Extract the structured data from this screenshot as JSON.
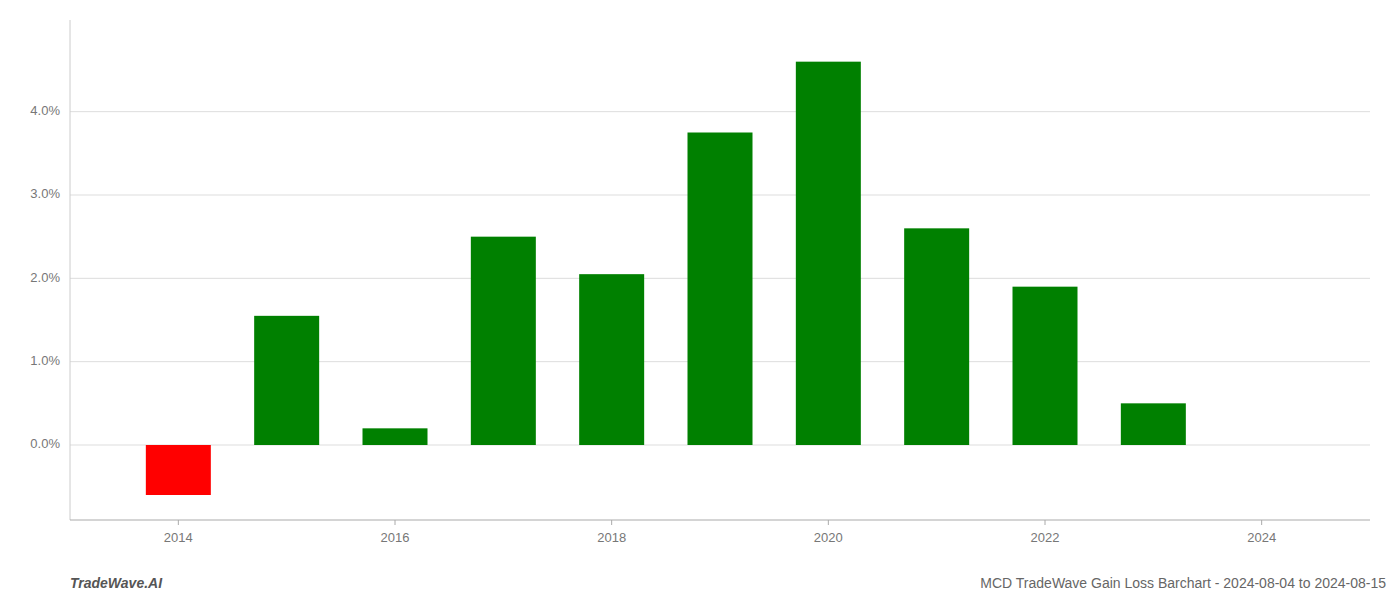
{
  "chart_data": {
    "type": "bar",
    "x": [
      2014,
      2015,
      2016,
      2017,
      2018,
      2019,
      2020,
      2021,
      2022,
      2023
    ],
    "values": [
      -0.006,
      0.0155,
      0.002,
      0.025,
      0.0205,
      0.0375,
      0.046,
      0.026,
      0.019,
      0.005
    ],
    "colors": [
      "#ff0000",
      "#008000",
      "#008000",
      "#008000",
      "#008000",
      "#008000",
      "#008000",
      "#008000",
      "#008000",
      "#008000"
    ],
    "xlim": [
      2013.0,
      2025.0
    ],
    "xticks": [
      2014,
      2016,
      2018,
      2020,
      2022,
      2024
    ],
    "ylim": [
      -0.009,
      0.051
    ],
    "yticks": [
      {
        "value": 0.0,
        "label": "0.0%"
      },
      {
        "value": 0.01,
        "label": "1.0%"
      },
      {
        "value": 0.02,
        "label": "2.0%"
      },
      {
        "value": 0.03,
        "label": "3.0%"
      },
      {
        "value": 0.04,
        "label": "4.0%"
      }
    ],
    "grid": true,
    "annotations": [
      "TradeWave.AI",
      "MCD TradeWave Gain Loss Barchart - 2024-08-04 to 2024-08-15"
    ]
  }
}
